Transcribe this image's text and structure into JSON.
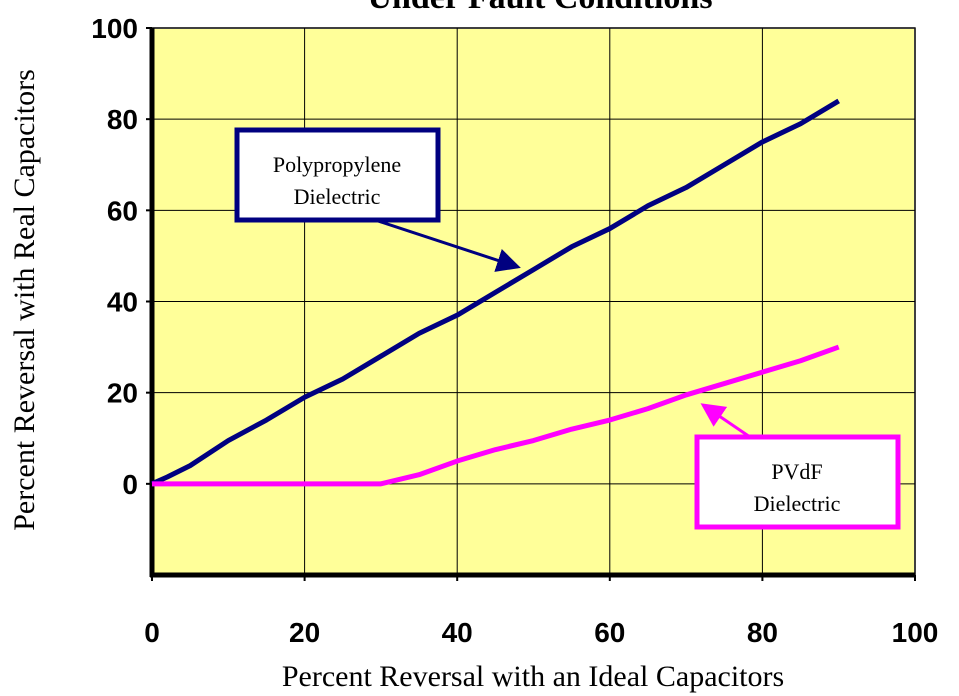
{
  "chart_data": {
    "type": "line",
    "title": "Under Fault Conditions",
    "x_label": "Percent Reversal with an Ideal Capacitors",
    "y_label": "Percent Reversal with Real Capacitors",
    "x": [
      0,
      2,
      5,
      10,
      15,
      20,
      25,
      30,
      35,
      40,
      45,
      50,
      55,
      60,
      65,
      70,
      75,
      80,
      85,
      90
    ],
    "series": [
      {
        "name": "Polypropylene Dielectric",
        "color": "#000080",
        "values": [
          0,
          1.5,
          4,
          9.5,
          14,
          19,
          23,
          28,
          33,
          37,
          42,
          47,
          52,
          56,
          61,
          65,
          70,
          75,
          79,
          84
        ]
      },
      {
        "name": "PVdF Dielectric",
        "color": "#ff00ff",
        "values": [
          0,
          0,
          0,
          0,
          0,
          0,
          0,
          0,
          2,
          5,
          7.5,
          9.5,
          12,
          14,
          16.5,
          19.5,
          22,
          24.5,
          27,
          30
        ]
      }
    ],
    "annotations": [
      {
        "lines": [
          "Polypropylene",
          "Dielectric"
        ]
      },
      {
        "lines": [
          "PVdF",
          "Dielectric"
        ]
      }
    ],
    "xlim": [
      0,
      100
    ],
    "xticks": [
      0,
      20,
      40,
      60,
      80,
      100
    ],
    "ylim": [
      -20,
      100
    ],
    "yticks": [
      0,
      20,
      40,
      60,
      80,
      100
    ],
    "grid": true,
    "plot_background": "#ffff99"
  }
}
